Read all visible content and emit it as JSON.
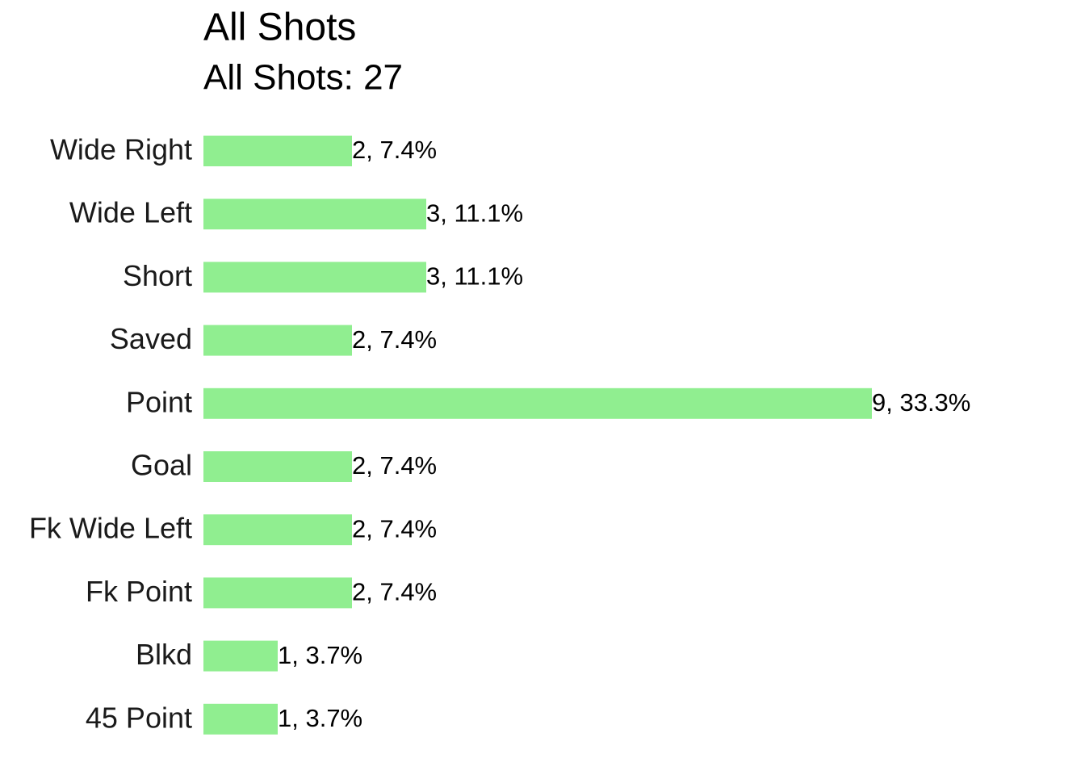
{
  "chart_data": {
    "type": "bar",
    "orientation": "horizontal",
    "title": "All Shots",
    "subtitle": "All Shots: 27",
    "categories": [
      "Wide Right",
      "Wide Left",
      "Short",
      "Saved",
      "Point",
      "Goal",
      "Fk Wide Left",
      "Fk Point",
      "Blkd",
      "45 Point"
    ],
    "values": [
      2,
      3,
      3,
      2,
      9,
      2,
      2,
      2,
      1,
      1
    ],
    "value_labels": [
      "2, 7.4%",
      "3, 11.1%",
      "3, 11.1%",
      "2, 7.4%",
      "9, 33.3%",
      "2, 7.4%",
      "2, 7.4%",
      "2, 7.4%",
      "1, 3.7%",
      "1, 3.7%"
    ],
    "color": "#90ee90"
  }
}
